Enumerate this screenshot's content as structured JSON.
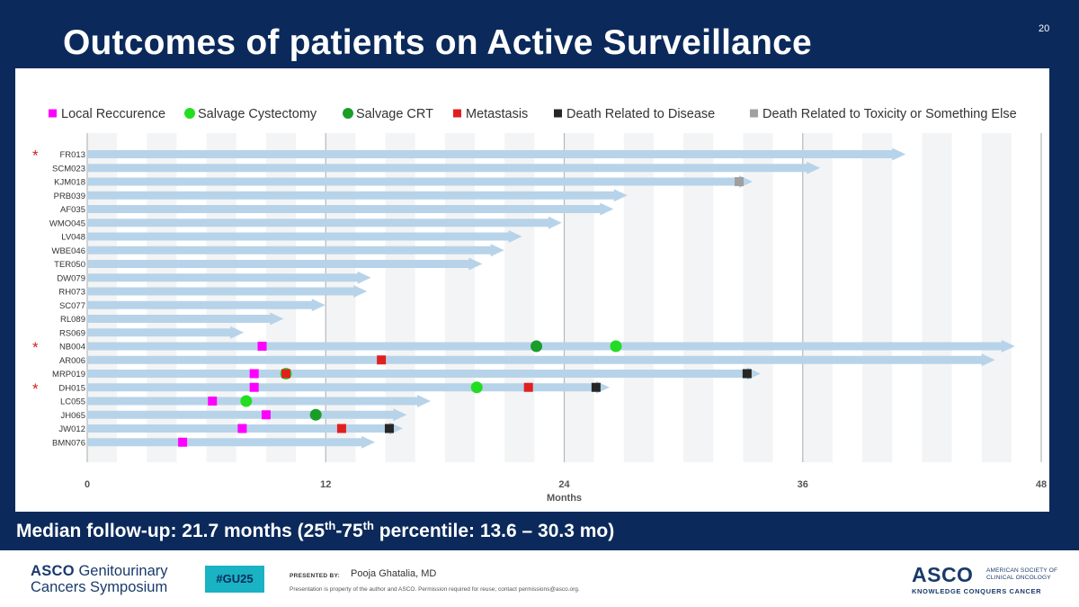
{
  "slide": {
    "title": "Outcomes of patients on Active Surveillance",
    "page_number": "20",
    "footnote_pre": "Median follow-up: 21.7 months (25",
    "footnote_sup1": "th",
    "footnote_mid": "-75",
    "footnote_sup2": "th",
    "footnote_post": " percentile: 13.6 – 30.3 mo)"
  },
  "footer": {
    "logo_line1_bold": "ASCO",
    "logo_line1_rest": " Genitourinary",
    "logo_line2": "Cancers Symposium",
    "tag": "#GU25",
    "presented_by": "PRESENTED BY:",
    "presenter": "Pooja Ghatalia, MD",
    "disclaimer": "Presentation is property of the author and ASCO. Permission required for reuse; contact permissions@asco.org.",
    "asco_mark": "ASCO",
    "asco_org_line1": "AMERICAN SOCIETY OF",
    "asco_org_line2": "CLINICAL ONCOLOGY",
    "asco_tagline": "KNOWLEDGE CONQUERS CANCER"
  },
  "colors": {
    "bar": "#b7d3e9",
    "local_recurrence": "#ff00ff",
    "salvage_cystectomy": "#22dd22",
    "salvage_crt": "#1a9e2a",
    "metastasis": "#e02020",
    "death_disease": "#262626",
    "death_other": "#a0a0a0",
    "asterisk": "#d62020"
  },
  "chart_data": {
    "type": "swimmer",
    "xlabel": "Months",
    "xlim": [
      0,
      48
    ],
    "xticks": [
      0,
      12,
      24,
      36,
      48
    ],
    "legend_position": "top",
    "legend": [
      {
        "key": "local_recurrence",
        "label": "Local Reccurence",
        "shape": "square"
      },
      {
        "key": "salvage_cystectomy",
        "label": "Salvage Cystectomy",
        "shape": "circle"
      },
      {
        "key": "salvage_crt",
        "label": "Salvage CRT",
        "shape": "circle"
      },
      {
        "key": "metastasis",
        "label": "Metastasis",
        "shape": "square"
      },
      {
        "key": "death_disease",
        "label": "Death Related to Disease",
        "shape": "square"
      },
      {
        "key": "death_other",
        "label": "Death Related to Toxicity or Something Else",
        "shape": "square"
      }
    ],
    "patients": [
      {
        "id": "FR013",
        "months": 40.5,
        "asterisk": true,
        "events": []
      },
      {
        "id": "SCM023",
        "months": 36.2,
        "asterisk": false,
        "events": []
      },
      {
        "id": "KJM018",
        "months": 32.8,
        "asterisk": false,
        "events": [
          {
            "type": "death_other",
            "month": 32.8
          }
        ]
      },
      {
        "id": "PRB039",
        "months": 26.5,
        "asterisk": false,
        "events": []
      },
      {
        "id": "AF035",
        "months": 25.8,
        "asterisk": false,
        "events": []
      },
      {
        "id": "WMO045",
        "months": 23.2,
        "asterisk": false,
        "events": []
      },
      {
        "id": "LV048",
        "months": 21.2,
        "asterisk": false,
        "events": []
      },
      {
        "id": "WBE046",
        "months": 20.3,
        "asterisk": false,
        "events": []
      },
      {
        "id": "TER050",
        "months": 19.2,
        "asterisk": false,
        "events": []
      },
      {
        "id": "DW079",
        "months": 13.6,
        "asterisk": false,
        "events": []
      },
      {
        "id": "RH073",
        "months": 13.4,
        "asterisk": false,
        "events": []
      },
      {
        "id": "SC077",
        "months": 11.3,
        "asterisk": false,
        "events": []
      },
      {
        "id": "RL089",
        "months": 9.2,
        "asterisk": false,
        "events": []
      },
      {
        "id": "RS069",
        "months": 7.2,
        "asterisk": false,
        "events": []
      },
      {
        "id": "NB004",
        "months": 46.0,
        "asterisk": true,
        "events": [
          {
            "type": "local_recurrence",
            "month": 8.8
          },
          {
            "type": "salvage_crt",
            "month": 22.6
          },
          {
            "type": "salvage_cystectomy",
            "month": 26.6
          }
        ]
      },
      {
        "id": "AR006",
        "months": 45.0,
        "asterisk": false,
        "events": [
          {
            "type": "metastasis",
            "month": 14.8
          }
        ]
      },
      {
        "id": "MRP019",
        "months": 33.2,
        "asterisk": false,
        "events": [
          {
            "type": "local_recurrence",
            "month": 8.4
          },
          {
            "type": "salvage_cystectomy",
            "month": 10.0
          },
          {
            "type": "metastasis",
            "month": 10.0
          },
          {
            "type": "death_disease",
            "month": 33.2
          }
        ]
      },
      {
        "id": "DH015",
        "months": 25.6,
        "asterisk": true,
        "events": [
          {
            "type": "local_recurrence",
            "month": 8.4
          },
          {
            "type": "salvage_cystectomy",
            "month": 19.6
          },
          {
            "type": "metastasis",
            "month": 22.2
          },
          {
            "type": "death_disease",
            "month": 25.6
          }
        ]
      },
      {
        "id": "LC055",
        "months": 16.6,
        "asterisk": false,
        "events": [
          {
            "type": "local_recurrence",
            "month": 6.3
          },
          {
            "type": "salvage_cystectomy",
            "month": 8.0
          }
        ]
      },
      {
        "id": "JH065",
        "months": 15.4,
        "asterisk": false,
        "events": [
          {
            "type": "local_recurrence",
            "month": 9.0
          },
          {
            "type": "salvage_crt",
            "month": 11.5
          }
        ]
      },
      {
        "id": "JW012",
        "months": 15.2,
        "asterisk": false,
        "events": [
          {
            "type": "local_recurrence",
            "month": 7.8
          },
          {
            "type": "metastasis",
            "month": 12.8
          },
          {
            "type": "death_disease",
            "month": 15.2
          }
        ]
      },
      {
        "id": "BMN076",
        "months": 13.8,
        "asterisk": false,
        "events": [
          {
            "type": "local_recurrence",
            "month": 4.8
          }
        ]
      }
    ]
  }
}
